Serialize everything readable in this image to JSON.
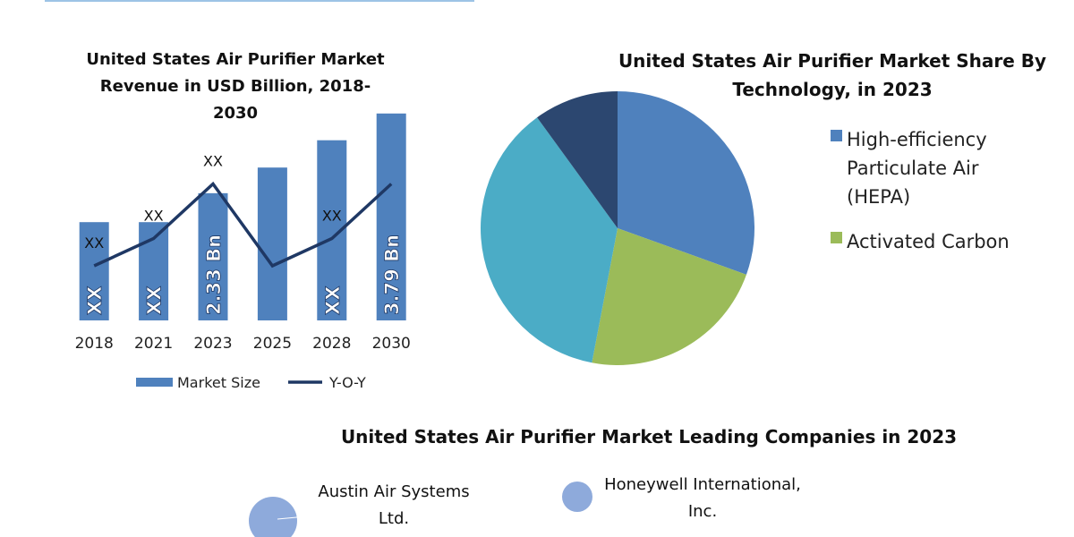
{
  "chart_data": [
    {
      "type": "bar",
      "title": "United States Air Purifier Market Revenue in USD Billion, 2018-2030",
      "categories": [
        "2018",
        "2021",
        "2023",
        "2025",
        "2028",
        "2030"
      ],
      "ylim": [
        0,
        4
      ],
      "series": [
        {
          "name": "Market Size",
          "type": "bar",
          "color": "#4f81bd",
          "values": [
            1.8,
            1.8,
            2.33,
            2.8,
            3.3,
            3.79
          ],
          "value_labels": [
            "XX",
            "XX",
            "2.33 Bn",
            null,
            "XX",
            "3.79 Bn"
          ]
        },
        {
          "name": "Y-O-Y",
          "type": "line",
          "color": "#1f3864",
          "values": [
            1.0,
            1.5,
            2.5,
            1.0,
            1.5,
            2.5
          ],
          "value_labels": [
            "XX",
            "XX",
            "XX",
            null,
            "XX",
            null
          ]
        }
      ]
    },
    {
      "type": "pie",
      "title": "United States Air Purifier Market Share By Technology, in 2023",
      "labels": [
        "High-efficiency Particulate Air (HEPA)",
        "Activated Carbon",
        null,
        null
      ],
      "values": [
        30.5,
        22.5,
        37,
        10
      ],
      "colors": [
        "#4f81bd",
        "#9bbb59",
        "#4bacc6",
        "#2c4770"
      ]
    }
  ],
  "companies": {
    "title": "United States Air Purifier Market Leading Companies in 2023",
    "items": [
      "Austin Air Systems Ltd.",
      "Honeywell International, Inc."
    ]
  }
}
